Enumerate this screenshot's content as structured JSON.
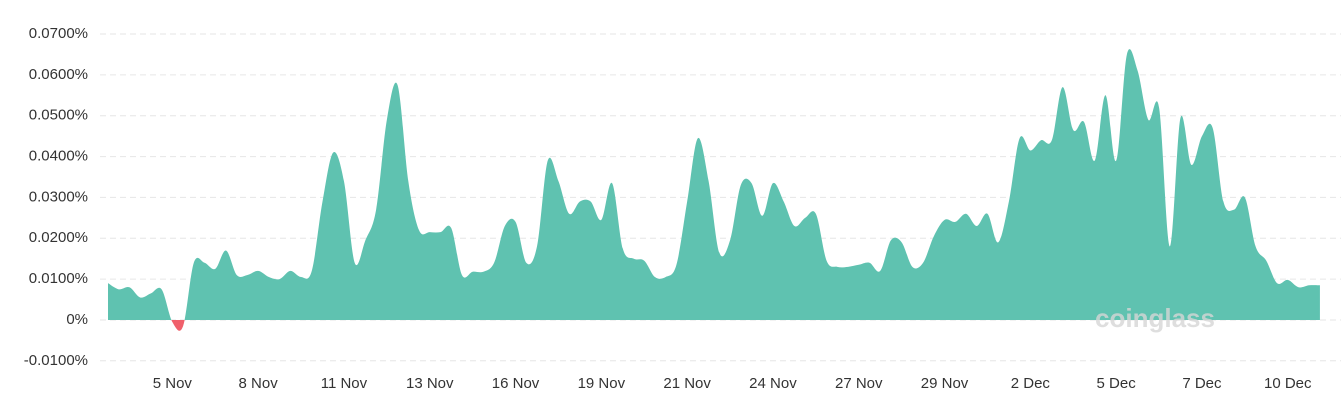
{
  "chart_data": {
    "type": "area",
    "watermark": "coinglass",
    "categories": [
      null,
      null,
      null,
      null,
      null,
      null,
      "5 Nov",
      null,
      null,
      null,
      null,
      null,
      null,
      null,
      "8 Nov",
      null,
      null,
      null,
      null,
      null,
      null,
      null,
      "11 Nov",
      null,
      null,
      null,
      null,
      null,
      null,
      null,
      "13 Nov",
      null,
      null,
      null,
      null,
      null,
      null,
      null,
      "16 Nov",
      null,
      null,
      null,
      null,
      null,
      null,
      null,
      "19 Nov",
      null,
      null,
      null,
      null,
      null,
      null,
      null,
      "21 Nov",
      null,
      null,
      null,
      null,
      null,
      null,
      null,
      "24 Nov",
      null,
      null,
      null,
      null,
      null,
      null,
      null,
      "27 Nov",
      null,
      null,
      null,
      null,
      null,
      null,
      null,
      "29 Nov",
      null,
      null,
      null,
      null,
      null,
      null,
      null,
      "2 Dec",
      null,
      null,
      null,
      null,
      null,
      null,
      null,
      "5 Dec",
      null,
      null,
      null,
      null,
      null,
      null,
      null,
      "7 Dec",
      null,
      null,
      null,
      null,
      null,
      null,
      null,
      "10 Dec",
      null,
      null,
      null
    ],
    "values": [
      0.009,
      0.0075,
      0.008,
      0.0055,
      0.0065,
      0.0075,
      -0.0005,
      -0.0015,
      0.014,
      0.014,
      0.0125,
      0.017,
      0.011,
      0.011,
      0.012,
      0.0105,
      0.01,
      0.012,
      0.0105,
      0.012,
      0.029,
      0.041,
      0.034,
      0.014,
      0.0195,
      0.027,
      0.049,
      0.0575,
      0.034,
      0.022,
      0.0215,
      0.0215,
      0.0225,
      0.011,
      0.0118,
      0.0118,
      0.014,
      0.023,
      0.024,
      0.014,
      0.018,
      0.039,
      0.034,
      0.026,
      0.029,
      0.029,
      0.0245,
      0.0335,
      0.0175,
      0.015,
      0.0145,
      0.0105,
      0.0105,
      0.0135,
      0.029,
      0.0445,
      0.034,
      0.0165,
      0.0195,
      0.033,
      0.0335,
      0.0255,
      0.0335,
      0.029,
      0.023,
      0.025,
      0.026,
      0.0145,
      0.013,
      0.013,
      0.0135,
      0.014,
      0.012,
      0.0195,
      0.019,
      0.013,
      0.014,
      0.0205,
      0.0245,
      0.024,
      0.026,
      0.023,
      0.026,
      0.019,
      0.029,
      0.0445,
      0.0415,
      0.044,
      0.044,
      0.057,
      0.0465,
      0.0485,
      0.039,
      0.055,
      0.039,
      0.065,
      0.061,
      0.049,
      0.052,
      0.018,
      0.0495,
      0.038,
      0.045,
      0.047,
      0.029,
      0.027,
      0.03,
      0.018,
      0.0145,
      0.009,
      0.0098,
      0.008,
      0.0085,
      0.0085
    ],
    "color": "#5fc2b0",
    "negative_color": "#f0606b",
    "ylim": [
      -0.0125,
      0.0705
    ],
    "yticks": [
      {
        "value": -0.01,
        "label": "-0.0100%"
      },
      {
        "value": 0,
        "label": "0%"
      },
      {
        "value": 0.01,
        "label": "0.0100%"
      },
      {
        "value": 0.02,
        "label": "0.0200%"
      },
      {
        "value": 0.03,
        "label": "0.0300%"
      },
      {
        "value": 0.04,
        "label": "0.0400%"
      },
      {
        "value": 0.05,
        "label": "0.0500%"
      },
      {
        "value": 0.06,
        "label": "0.0600%"
      },
      {
        "value": 0.07,
        "label": "0.0700%"
      }
    ],
    "grid": true
  }
}
